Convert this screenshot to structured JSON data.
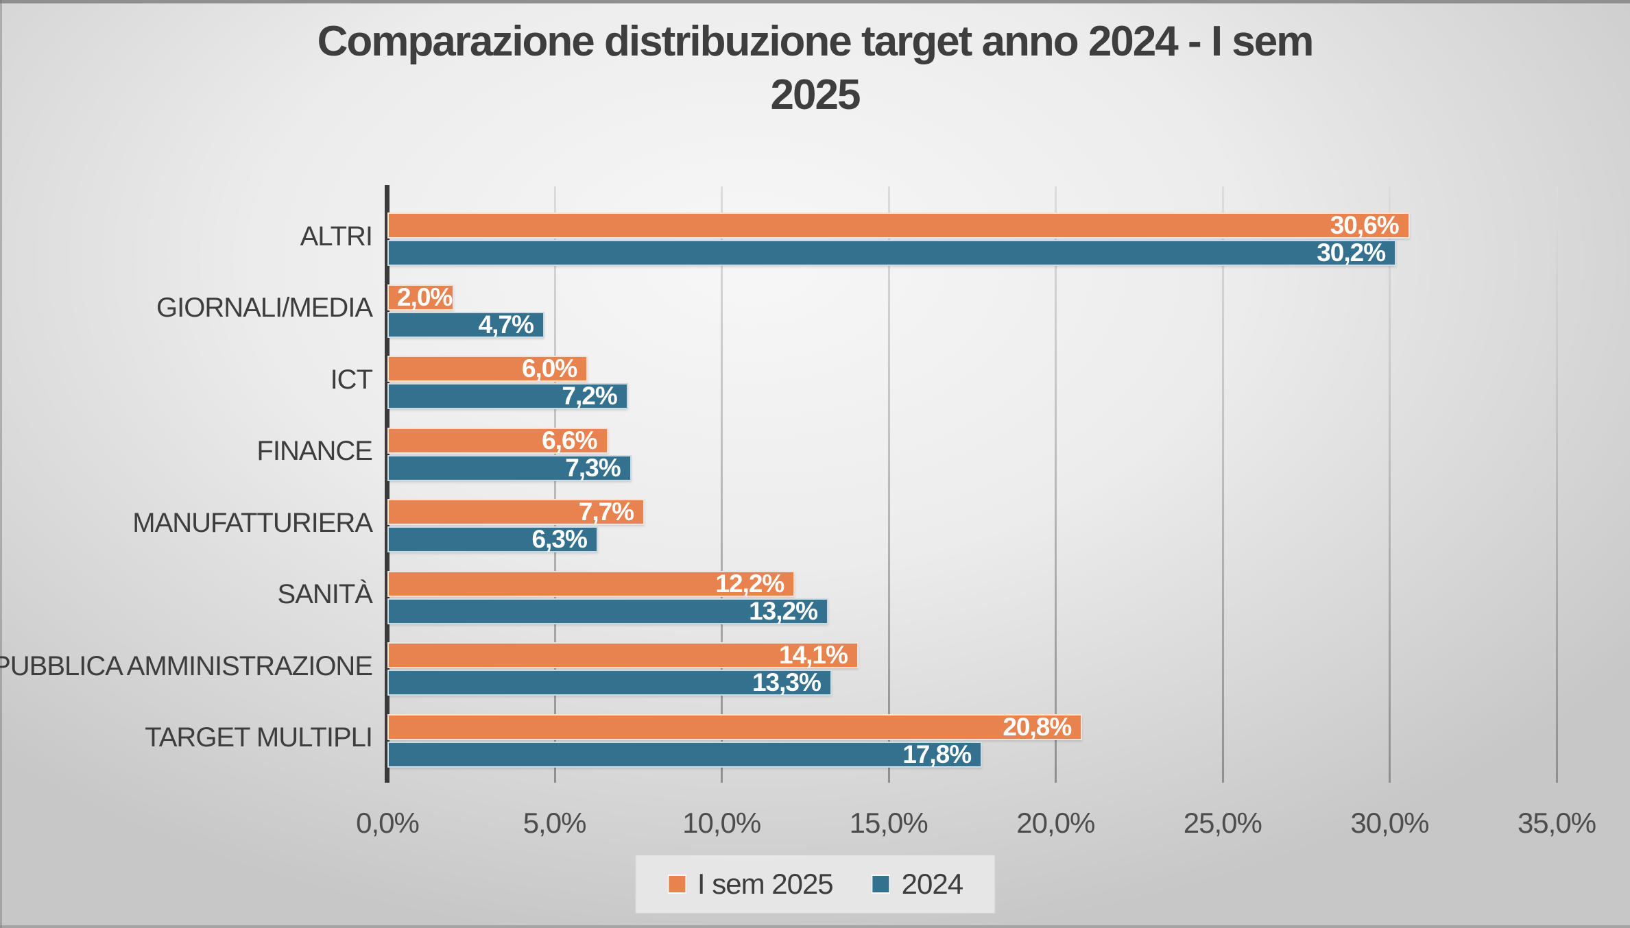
{
  "title": {
    "line1": "Comparazione distribuzione target anno 2024 - I sem",
    "line2": "2025"
  },
  "colors": {
    "sem2025_orange": "#E8824E",
    "y2024_blue": "#33718F",
    "title_text": "#3E3E3E",
    "axis_line": "#3A3A3A",
    "value_text": "#FFFFFF"
  },
  "legend": {
    "items": [
      {
        "label": "I sem 2025",
        "color": "#E8824E"
      },
      {
        "label": "2024",
        "color": "#33718F"
      }
    ]
  },
  "chart_data": {
    "type": "bar",
    "orientation": "horizontal",
    "title": "Comparazione distribuzione target anno 2024 - I sem 2025",
    "categories": [
      "ALTRI",
      "GIORNALI/MEDIA",
      "ICT",
      "FINANCE",
      "MANUFATTURIERA",
      "SANITÀ",
      "PUBBLICA AMMINISTRAZIONE",
      "TARGET MULTIPLI"
    ],
    "series": [
      {
        "name": "I sem 2025",
        "color": "#E8824E",
        "values": [
          30.6,
          2.0,
          6.0,
          6.6,
          7.7,
          12.2,
          14.1,
          20.8
        ],
        "labels": [
          "30,6%",
          "2,0%",
          "6,0%",
          "6,6%",
          "7,7%",
          "12,2%",
          "14,1%",
          "20,8%"
        ]
      },
      {
        "name": "2024",
        "color": "#33718F",
        "values": [
          30.2,
          4.7,
          7.2,
          7.3,
          6.3,
          13.2,
          13.3,
          17.8
        ],
        "labels": [
          "30,2%",
          "4,7%",
          "7,2%",
          "7,3%",
          "6,3%",
          "13,2%",
          "13,3%",
          "17,8%"
        ]
      }
    ],
    "xlabel": "",
    "ylabel": "",
    "xlim": [
      0,
      35
    ],
    "x_ticks": [
      0,
      5,
      10,
      15,
      20,
      25,
      30,
      35
    ],
    "x_tick_labels": [
      "0,0%",
      "5,0%",
      "10,0%",
      "15,0%",
      "20,0%",
      "25,0%",
      "30,0%",
      "35,0%"
    ],
    "grid": true,
    "legend_position": "bottom"
  }
}
